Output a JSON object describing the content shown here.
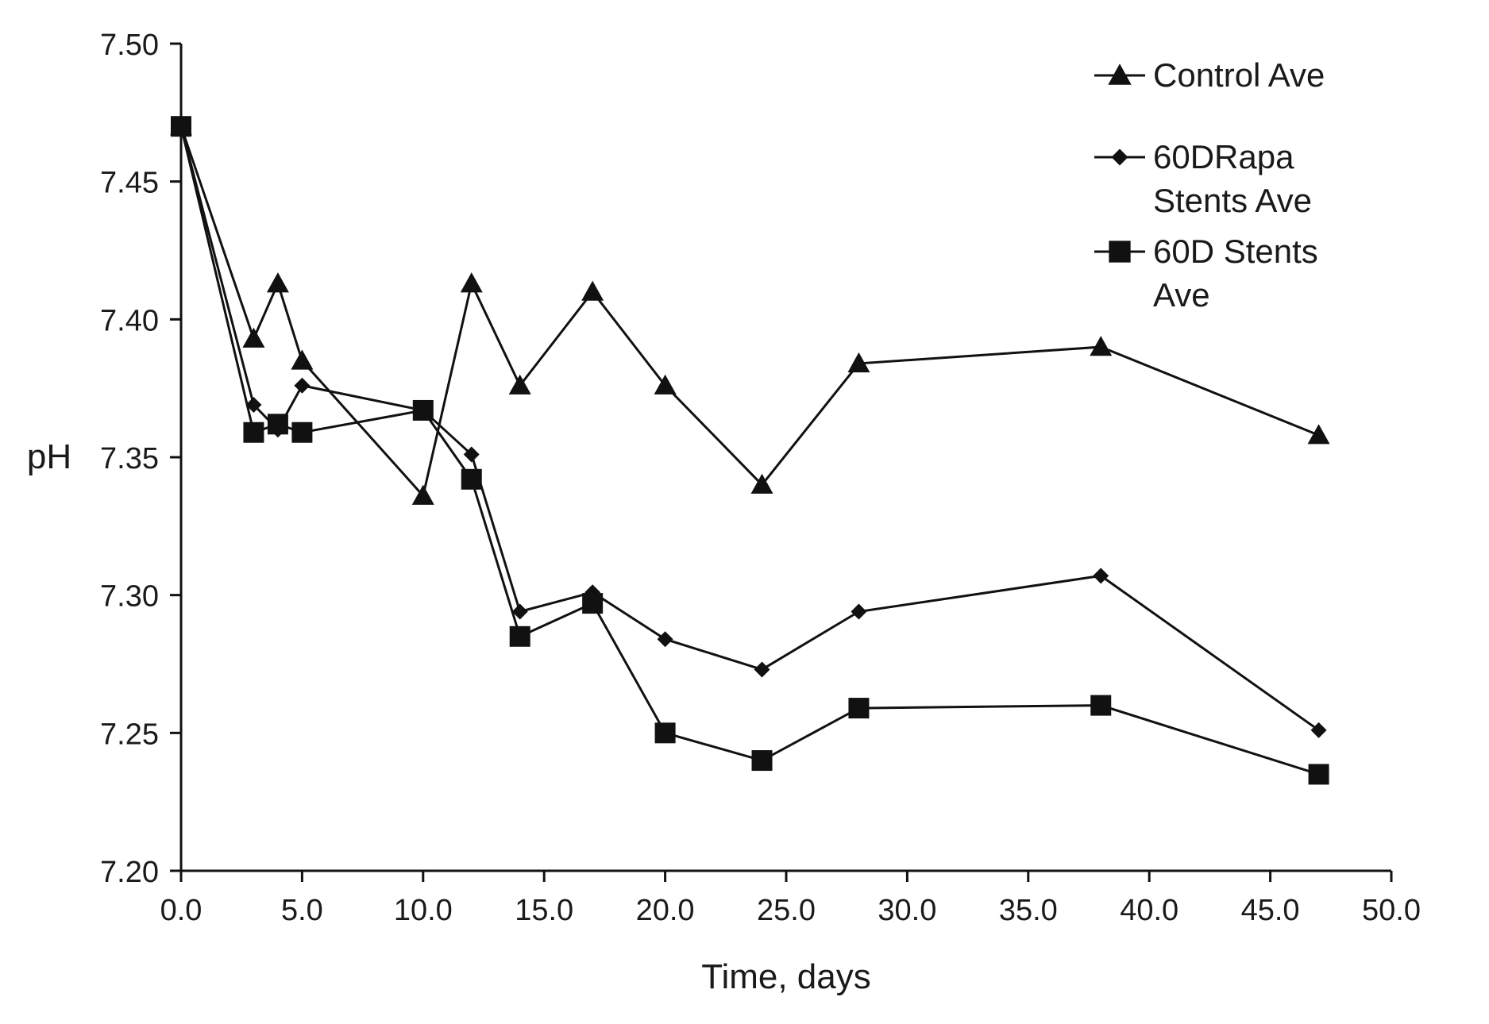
{
  "chart_data": {
    "type": "line",
    "title": "",
    "xlabel": "Time, days",
    "ylabel": "pH",
    "xlim": [
      0,
      50
    ],
    "ylim": [
      7.2,
      7.5
    ],
    "x_ticks": [
      "0.0",
      "5.0",
      "10.0",
      "15.0",
      "20.0",
      "25.0",
      "30.0",
      "35.0",
      "40.0",
      "45.0",
      "50.0"
    ],
    "y_ticks": [
      "7.20",
      "7.25",
      "7.30",
      "7.35",
      "7.40",
      "7.45",
      "7.50"
    ],
    "grid": false,
    "legend_position": "top-right",
    "series": [
      {
        "name": "Control Ave",
        "marker": "triangle",
        "color": "#111111",
        "legend_lines": [
          "Control Ave"
        ],
        "x": [
          0,
          3,
          4,
          5,
          10,
          12,
          14,
          17,
          20,
          24,
          28,
          38,
          47
        ],
        "y": [
          7.47,
          7.393,
          7.413,
          7.385,
          7.336,
          7.413,
          7.376,
          7.41,
          7.376,
          7.34,
          7.384,
          7.39,
          7.358
        ]
      },
      {
        "name": "60DRapa Stents Ave",
        "marker": "diamond",
        "color": "#111111",
        "legend_lines": [
          "60DRapa",
          "Stents Ave"
        ],
        "x": [
          0,
          3,
          4,
          5,
          10,
          12,
          14,
          17,
          20,
          24,
          28,
          38,
          47
        ],
        "y": [
          7.47,
          7.369,
          7.36,
          7.376,
          7.367,
          7.351,
          7.294,
          7.301,
          7.284,
          7.273,
          7.294,
          7.307,
          7.251
        ]
      },
      {
        "name": "60D Stents Ave",
        "marker": "square",
        "color": "#111111",
        "legend_lines": [
          "60D Stents",
          "Ave"
        ],
        "x": [
          0,
          3,
          4,
          5,
          10,
          12,
          14,
          17,
          20,
          24,
          28,
          38,
          47
        ],
        "y": [
          7.47,
          7.359,
          7.362,
          7.359,
          7.367,
          7.342,
          7.285,
          7.297,
          7.25,
          7.24,
          7.259,
          7.26,
          7.235
        ]
      }
    ]
  }
}
